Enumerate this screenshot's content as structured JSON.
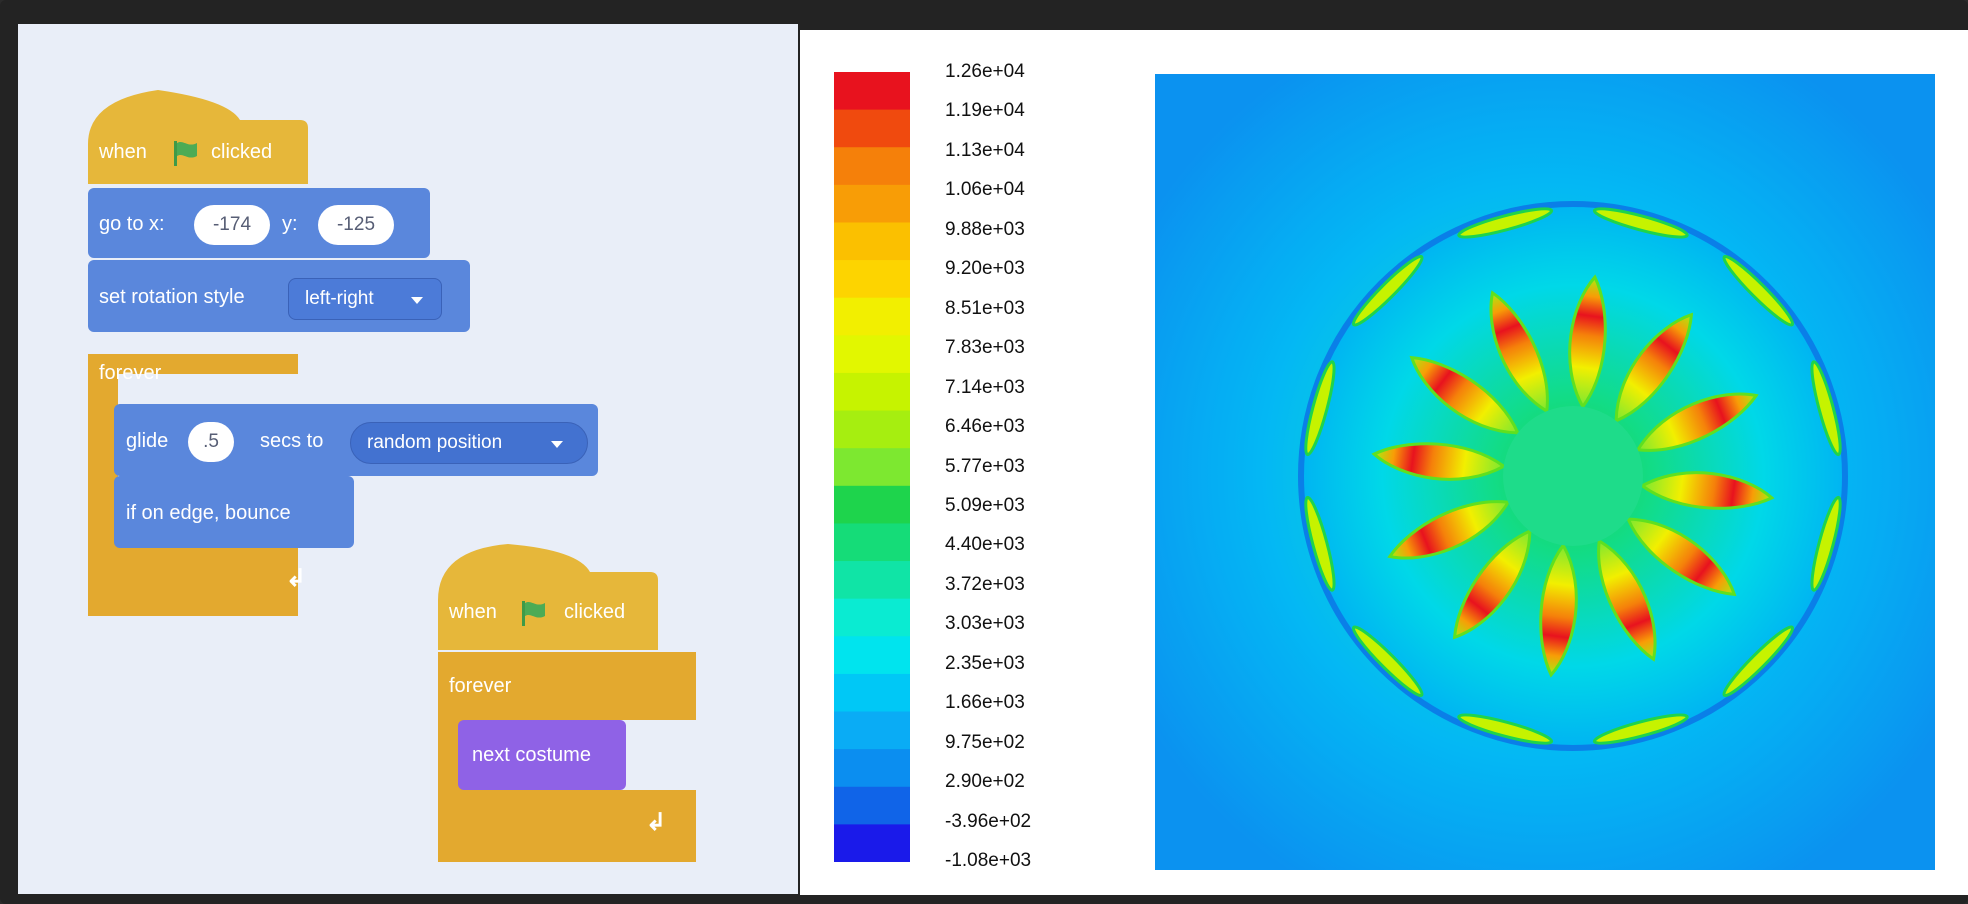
{
  "script1": {
    "hat": {
      "when": "when",
      "clicked": "clicked"
    },
    "goto": {
      "label": "go to x:",
      "x": "-174",
      "y_label": "y:",
      "y": "-125"
    },
    "rotation": {
      "label": "set rotation style",
      "value": "left-right"
    },
    "forever": {
      "label": "forever"
    },
    "glide": {
      "label": "glide",
      "secs": ".5",
      "secs_to": "secs to",
      "target": "random position"
    },
    "bounce": {
      "label": "if on edge, bounce"
    }
  },
  "script2": {
    "hat": {
      "when": "when",
      "clicked": "clicked"
    },
    "forever": {
      "label": "forever"
    },
    "next_costume": {
      "label": "next costume"
    }
  },
  "colorbar": {
    "labels": [
      "1.26e+04",
      "1.19e+04",
      "1.13e+04",
      "1.06e+04",
      "9.88e+03",
      "9.20e+03",
      "8.51e+03",
      "7.83e+03",
      "7.14e+03",
      "6.46e+03",
      "5.77e+03",
      "5.09e+03",
      "4.40e+03",
      "3.72e+03",
      "3.03e+03",
      "2.35e+03",
      "1.66e+03",
      "9.75e+02",
      "2.90e+02",
      "-3.96e+02",
      "-1.08e+03"
    ],
    "colors": [
      "#e8121e",
      "#f04a0e",
      "#f5800a",
      "#f89d06",
      "#fbc000",
      "#fdd400",
      "#f2ef00",
      "#e2f700",
      "#c6f300",
      "#a6ee10",
      "#7de830",
      "#1ed44c",
      "#15dc78",
      "#10e4a6",
      "#0aebd2",
      "#00e4ee",
      "#00c8f6",
      "#0aacf5",
      "#0b8ef0",
      "#1064e8",
      "#1a1aea"
    ]
  },
  "colors": {
    "events": "#e6b73a",
    "control": "#e3a92f",
    "motion": "#5a87dc",
    "looks": "#8f62e6",
    "flag": "#4cab55"
  }
}
